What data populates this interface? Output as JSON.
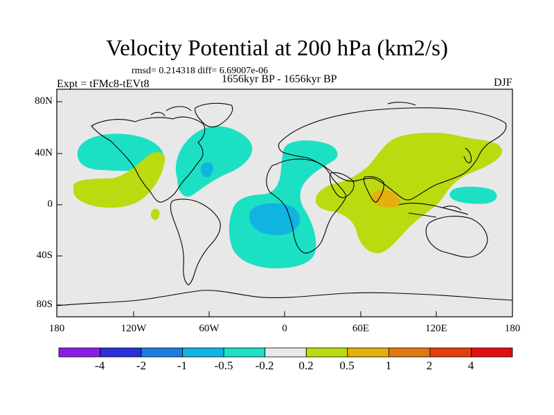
{
  "map": {
    "title": "Velocity Potential at 200 hPa (km2/s)",
    "stats_text": "rmsd= 0.214318 diff= 6.69007e-06",
    "period_text": "1656kyr BP - 1656kyr BP",
    "experiment_text": "Expt = tFMc8-tEVt8",
    "season": "DJF",
    "lat_labels": [
      "80N",
      "40N",
      "0",
      "40S",
      "80S"
    ],
    "lon_labels": [
      "180",
      "120W",
      "60W",
      "0",
      "60E",
      "120E",
      "180"
    ]
  },
  "colorbar": {
    "labels": [
      "-4",
      "-2",
      "-1",
      "-0.5",
      "-0.2",
      "0.2",
      "0.5",
      "1",
      "2",
      "4"
    ],
    "colors": [
      "#8a1ee6",
      "#2830d8",
      "#1e7ee0",
      "#10b4e0",
      "#1ce0c4",
      "#e8e8e8",
      "#bcda10",
      "#e4b010",
      "#e07812",
      "#e04010",
      "#e01010"
    ]
  },
  "legend_colors": {
    "ocean_land_bg": "#e8e8e8",
    "neg_02": "#1ce0c4",
    "neg_05": "#10b4e0",
    "neg_1": "#1e7ee0",
    "pos_02": "#bcda10",
    "pos_05": "#e4b010"
  }
}
